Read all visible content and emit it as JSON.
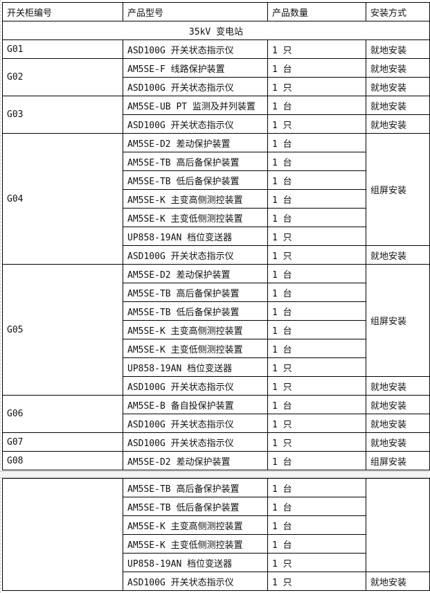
{
  "headers": [
    "开关柜编号",
    "产品型号",
    "产品数量",
    "安装方式"
  ],
  "section": "35kV 变电站",
  "groups": [
    {
      "id": "G01",
      "rows": [
        [
          "ASD100G 开关状态指示仪",
          "1 只",
          "就地安装"
        ]
      ]
    },
    {
      "id": "G02",
      "rows": [
        [
          "AM5SE-F 线路保护装置",
          "1 台",
          "就地安装"
        ],
        [
          "ASD100G 开关状态指示仪",
          "1 只",
          "就地安装"
        ]
      ]
    },
    {
      "id": "G03",
      "rows": [
        [
          "AM5SE-UB PT 监测及并列装置",
          "1 台",
          "就地安装"
        ],
        [
          "ASD100G 开关状态指示仪",
          "1 只",
          "就地安装"
        ]
      ]
    },
    {
      "id": "G04",
      "rows": [
        [
          "AM5SE-D2 差动保护装置",
          "1 台"
        ],
        [
          "AM5SE-TB 高后备保护装置",
          "1 台"
        ],
        [
          "AM5SE-TB 低后备保护装置",
          "1 台"
        ],
        [
          "AM5SE-K 主变高侧测控装置",
          "1 台"
        ],
        [
          "AM5SE-K 主变低侧测控装置",
          "1 台"
        ],
        [
          "UP858-19AN 档位变送器",
          "1 只"
        ],
        [
          "ASD100G 开关状态指示仪",
          "1 只",
          "就地安装"
        ]
      ],
      "merged_install": "组屏安装"
    },
    {
      "id": "G05",
      "rows": [
        [
          "AM5SE-D2 差动保护装置",
          "1 台"
        ],
        [
          "AM5SE-TB 高后备保护装置",
          "1 台"
        ],
        [
          "AM5SE-TB 低后备保护装置",
          "1 台"
        ],
        [
          "AM5SE-K 主变高侧测控装置",
          "1 台"
        ],
        [
          "AM5SE-K 主变低侧测控装置",
          "1 台"
        ],
        [
          "UP858-19AN 档位变送器",
          "1 只"
        ],
        [
          "ASD100G 开关状态指示仪",
          "1 只",
          "就地安装"
        ]
      ],
      "merged_install": "组屏安装"
    },
    {
      "id": "G06",
      "rows": [
        [
          "AM5SE-B 备自投保护装置",
          "1 台",
          "就地安装"
        ],
        [
          "ASD100G 开关状态指示仪",
          "1 只",
          "就地安装"
        ]
      ]
    },
    {
      "id": "G07",
      "rows": [
        [
          "ASD100G 开关状态指示仪",
          "1 只",
          "就地安装"
        ]
      ]
    },
    {
      "id": "G08",
      "rows": [
        [
          "AM5SE-D2 差动保护装置",
          "1 台",
          "组屏安装"
        ]
      ]
    }
  ],
  "continued": {
    "id": "",
    "rows": [
      [
        "AM5SE-TB 高后备保护装置",
        "1 台"
      ],
      [
        "AM5SE-TB 低后备保护装置",
        "1 台"
      ],
      [
        "AM5SE-K 主变高侧测控装置",
        "1 台"
      ],
      [
        "AM5SE-K 主变低侧测控装置",
        "1 台"
      ],
      [
        "UP858-19AN 档位变送器",
        "1 只"
      ],
      [
        "ASD100G 开关状态指示仪",
        "1 只",
        "就地安装"
      ]
    ],
    "merged_install": ""
  }
}
